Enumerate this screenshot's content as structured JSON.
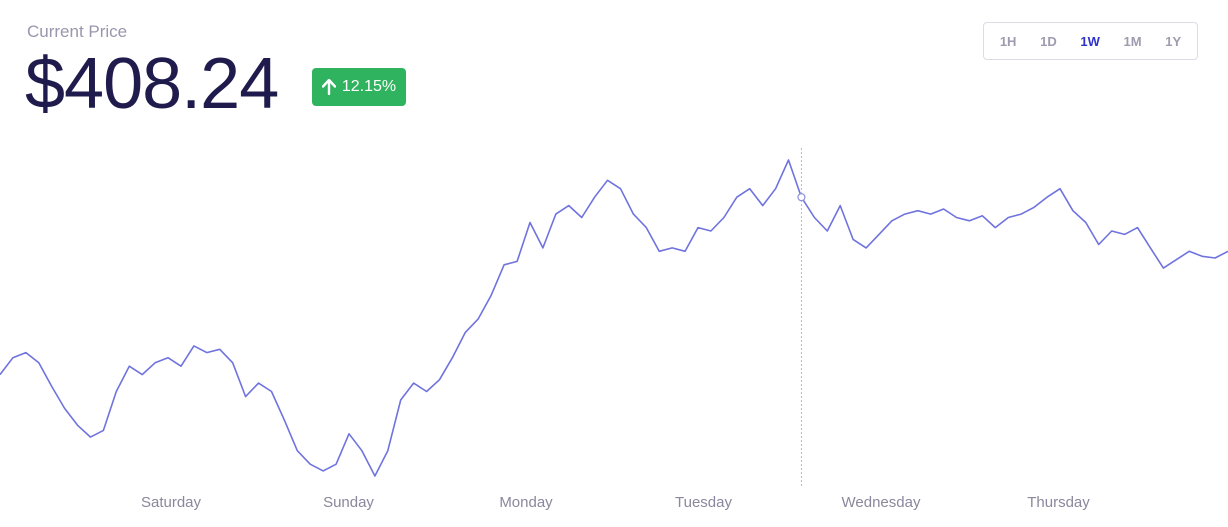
{
  "header": {
    "price_label": "Current Price",
    "price_value": "$408.24",
    "change_percent": "12.15%",
    "change_direction": "up",
    "change_color": "#2fb35f"
  },
  "range_selector": {
    "options": [
      "1H",
      "1D",
      "1W",
      "1M",
      "1Y"
    ],
    "selected": "1W",
    "active_color": "#2e33c9"
  },
  "chart_data": {
    "type": "line",
    "line_color": "#6f73de",
    "grid": false,
    "x_ticks": [
      "Saturday",
      "Sunday",
      "Monday",
      "Tuesday",
      "Wednesday",
      "Thursday"
    ],
    "hover_index": 62,
    "series": [
      {
        "values": [
          345,
          355,
          358,
          352,
          338,
          325,
          315,
          308,
          312,
          335,
          350,
          345,
          352,
          355,
          350,
          362,
          358,
          360,
          352,
          332,
          340,
          335,
          318,
          300,
          292,
          288,
          292,
          310,
          300,
          285,
          300,
          330,
          340,
          335,
          342,
          355,
          370,
          378,
          392,
          410,
          412,
          435,
          420,
          440,
          445,
          438,
          450,
          460,
          455,
          440,
          432,
          418,
          420,
          418,
          432,
          430,
          438,
          450,
          455,
          445,
          455,
          472,
          450,
          438,
          430,
          445,
          425,
          420,
          428,
          436,
          440,
          442,
          440,
          443,
          438,
          436,
          439,
          432,
          438,
          440,
          444,
          450,
          455,
          442,
          435,
          422,
          430,
          428,
          432,
          420,
          408,
          413,
          418,
          415,
          414,
          418
        ]
      }
    ]
  }
}
